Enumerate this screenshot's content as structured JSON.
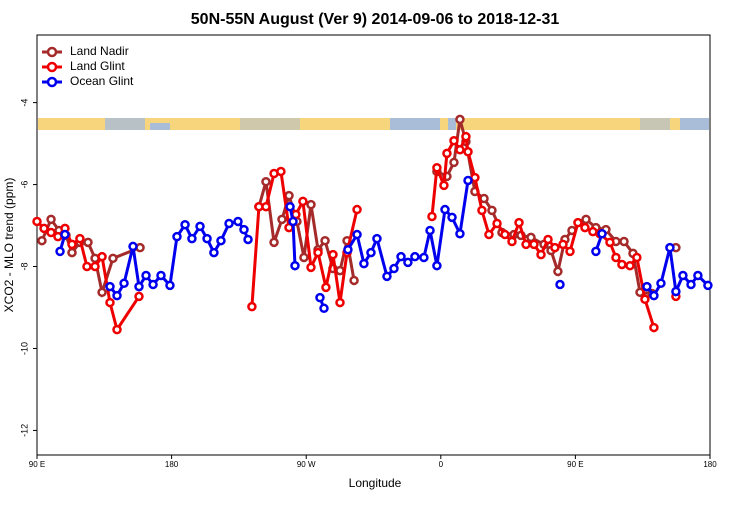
{
  "chart_data": {
    "type": "line",
    "title": "50N-55N August (Ver 9)   2014-09-06 to 2018-12-31",
    "xlabel": "Longitude",
    "ylabel": "XCO2 - MLO trend (ppm)",
    "xlim": [
      90,
      540
    ],
    "xticks": [
      {
        "value": 90,
        "label": "90 E"
      },
      {
        "value": 180,
        "label": "180"
      },
      {
        "value": 270,
        "label": "90 W"
      },
      {
        "value": 360,
        "label": "0"
      },
      {
        "value": 450,
        "label": "90 E"
      },
      {
        "value": 540,
        "label": "180"
      }
    ],
    "ylim": [
      -12.6,
      -2.35
    ],
    "yticks": [
      -4,
      -6,
      -8,
      -10,
      -12
    ],
    "legend": "top-left",
    "series": [
      {
        "name": "Land Nadir",
        "color": "#a52a2a",
        "x": [
          93.3,
          99.4,
          104.7,
          109.4,
          113.4,
          118.7,
          124.1,
          128.8,
          133.5,
          140.8,
          158.9,
          null,
          238.4,
          243.1,
          248.5,
          253.8,
          258.5,
          263.8,
          268.5,
          273.2,
          277.9,
          282.6,
          287.9,
          292.6,
          297.3,
          302.0,
          null,
          357.4,
          364.1,
          368.8,
          372.8,
          376.8,
          382.8,
          388.9,
          394.2,
          400.9,
          408.9,
          413.6,
          420.3,
          429.0,
          433.7,
          438.3,
          443.0,
          447.7,
          457.1,
          463.7,
          470.4,
          477.1,
          482.5,
          488.5,
          493.2,
          501.2,
          null,
          517.2
        ],
        "values": [
          -7.37,
          -6.85,
          -7.12,
          -7.24,
          -7.66,
          -7.41,
          -7.41,
          -7.8,
          -8.63,
          -7.8,
          -7.54,
          null,
          -6.54,
          -5.93,
          -7.41,
          -6.85,
          -6.27,
          -6.9,
          -7.78,
          -6.49,
          -7.59,
          -7.37,
          -8.05,
          -8.1,
          -7.37,
          -8.34,
          null,
          -5.68,
          -5.8,
          -5.46,
          -4.41,
          -4.95,
          -6.17,
          -6.34,
          -6.63,
          -7.17,
          -7.22,
          -7.24,
          -7.29,
          -7.46,
          -7.61,
          -8.12,
          -7.34,
          -7.12,
          -6.85,
          -7.05,
          -7.1,
          -7.39,
          -7.39,
          -7.68,
          -8.63,
          -8.66,
          null,
          -7.54
        ]
      },
      {
        "name": "Land Glint",
        "color": "#ee0000",
        "x": [
          90.0,
          94.7,
          99.4,
          104.0,
          108.7,
          113.4,
          118.7,
          123.4,
          128.8,
          133.5,
          138.8,
          143.5,
          158.2,
          null,
          233.7,
          238.4,
          243.1,
          248.5,
          253.1,
          258.5,
          263.1,
          267.8,
          273.2,
          277.9,
          283.2,
          287.9,
          292.6,
          297.3,
          304.0,
          null,
          354.1,
          357.4,
          362.1,
          364.1,
          368.8,
          372.8,
          376.8,
          378.2,
          382.8,
          387.5,
          392.2,
          397.6,
          402.9,
          407.6,
          412.3,
          417.0,
          422.3,
          427.0,
          431.7,
          436.3,
          441.7,
          446.4,
          451.7,
          456.4,
          461.7,
          466.4,
          473.1,
          477.1,
          481.1,
          486.5,
          491.1,
          496.5,
          502.5,
          null,
          517.2
        ],
        "values": [
          -6.9,
          -7.07,
          -7.17,
          -7.27,
          -7.07,
          -7.46,
          -7.32,
          -8.0,
          -8.0,
          -7.76,
          -8.88,
          -9.54,
          -8.73,
          null,
          -8.98,
          -6.54,
          -6.54,
          -5.73,
          -5.68,
          -7.05,
          -6.73,
          -6.41,
          -8.02,
          -7.66,
          -8.51,
          -7.71,
          -8.88,
          -7.66,
          -6.61,
          null,
          -6.78,
          -5.59,
          -6.02,
          -5.24,
          -4.93,
          -5.15,
          -4.83,
          -5.2,
          -5.83,
          -6.63,
          -7.22,
          -6.95,
          -7.22,
          -7.39,
          -6.93,
          -7.46,
          -7.46,
          -7.71,
          -7.34,
          -7.54,
          -7.46,
          -7.63,
          -6.93,
          -7.05,
          -7.15,
          -7.2,
          -7.41,
          -7.78,
          -7.95,
          -7.98,
          -7.78,
          -8.8,
          -9.49,
          null,
          -8.73
        ]
      },
      {
        "name": "Ocean Glint",
        "color": "#0000ee",
        "x": [
          105.4,
          108.7,
          null,
          138.8,
          143.5,
          148.2,
          154.2,
          158.2,
          162.9,
          167.6,
          172.9,
          178.9,
          183.6,
          189.0,
          193.6,
          199.0,
          203.7,
          208.3,
          213.0,
          218.4,
          224.4,
          228.4,
          231.1,
          null,
          259.2,
          261.2,
          262.5,
          null,
          279.2,
          281.9,
          null,
          297.9,
          304.0,
          308.6,
          313.3,
          317.3,
          324.0,
          328.7,
          333.4,
          338.0,
          342.7,
          348.7,
          352.8,
          357.4,
          362.8,
          367.5,
          372.8,
          378.2,
          null,
          439.7,
          null,
          463.7,
          467.8,
          null,
          497.8,
          502.5,
          507.2,
          513.2,
          517.2,
          521.9,
          527.3,
          531.9,
          538.6
        ],
        "values": [
          -7.63,
          -7.22,
          null,
          -8.49,
          -8.71,
          -8.41,
          -7.51,
          -8.49,
          -8.22,
          -8.44,
          -8.22,
          -8.46,
          -7.27,
          -6.98,
          -7.32,
          -7.02,
          -7.32,
          -7.66,
          -7.37,
          -6.95,
          -6.9,
          -7.1,
          -7.34,
          null,
          -6.54,
          -6.9,
          -7.98,
          null,
          -8.76,
          -9.02,
          null,
          -7.59,
          -7.22,
          -7.93,
          -7.66,
          -7.32,
          -8.24,
          -8.05,
          -7.76,
          -7.9,
          -7.76,
          -7.78,
          -7.12,
          -7.98,
          -6.61,
          -6.8,
          -7.2,
          -5.9,
          null,
          -8.44,
          null,
          -7.63,
          -7.2,
          null,
          -8.49,
          -8.71,
          -8.41,
          -7.54,
          -8.61,
          -8.22,
          -8.44,
          -8.22,
          -8.46
        ]
      }
    ]
  }
}
